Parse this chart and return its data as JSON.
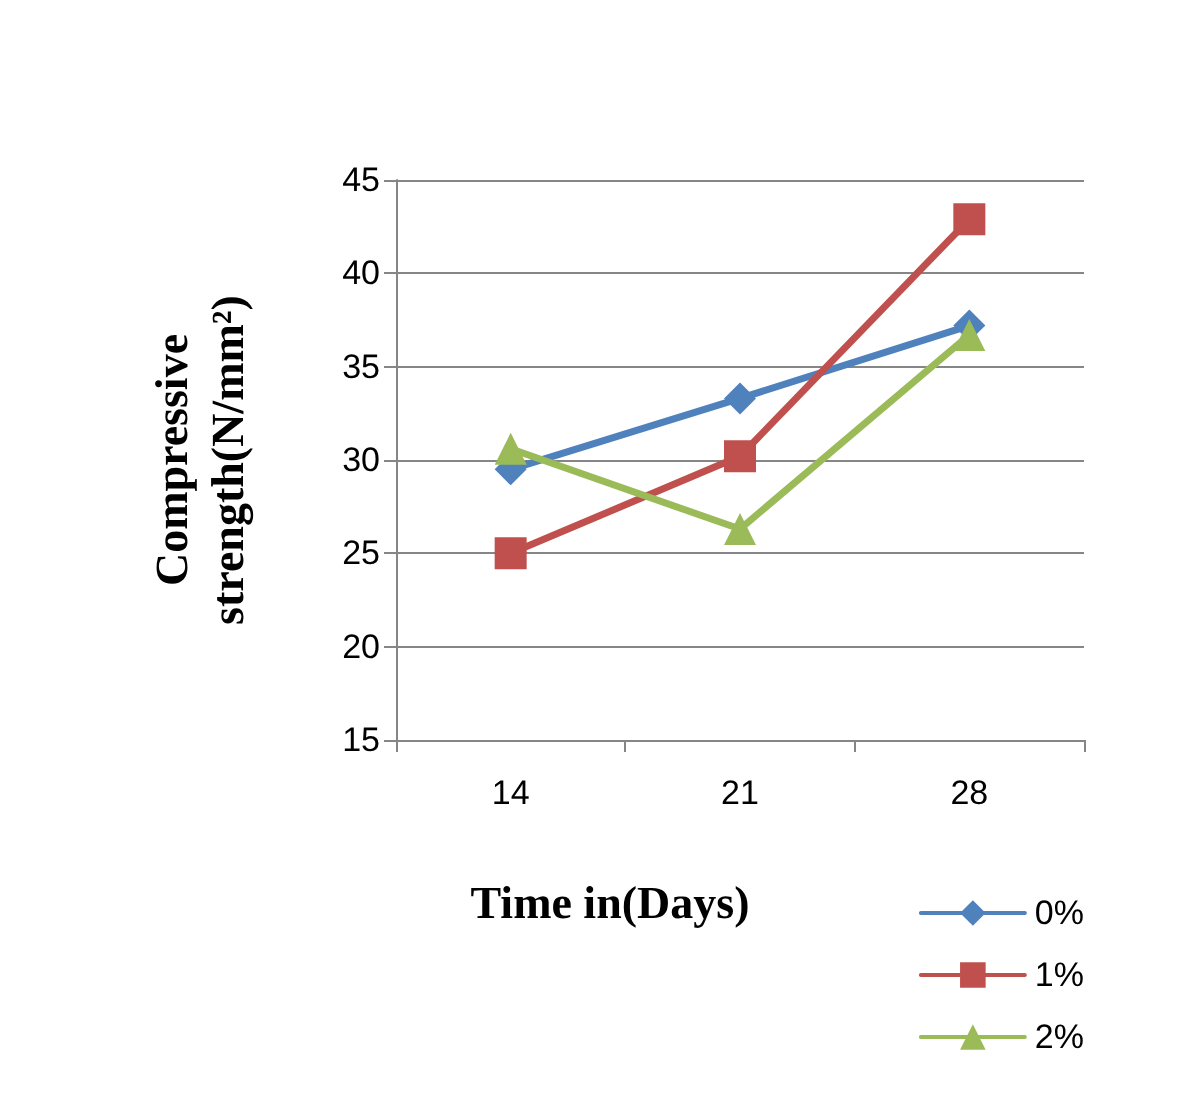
{
  "chart_data": {
    "type": "line",
    "xlabel": "Time in(Days)",
    "ylabel": "Compressive strength(N/mm²)",
    "categories": [
      "14",
      "21",
      "28"
    ],
    "series": [
      {
        "name": "0%",
        "color": "#4f81bd",
        "marker": "diamond",
        "values": [
          29.5,
          33.3,
          37.2
        ]
      },
      {
        "name": "1%",
        "color": "#c0504d",
        "marker": "square",
        "values": [
          25.0,
          30.2,
          42.9
        ]
      },
      {
        "name": "2%",
        "color": "#9bbb59",
        "marker": "triangle",
        "values": [
          30.6,
          26.3,
          36.7
        ]
      }
    ],
    "ylim": [
      15,
      45
    ],
    "yticks": [
      15,
      20,
      25,
      30,
      35,
      40,
      45
    ],
    "grid": "y",
    "legend": "bottom right",
    "line_style": "solid"
  }
}
